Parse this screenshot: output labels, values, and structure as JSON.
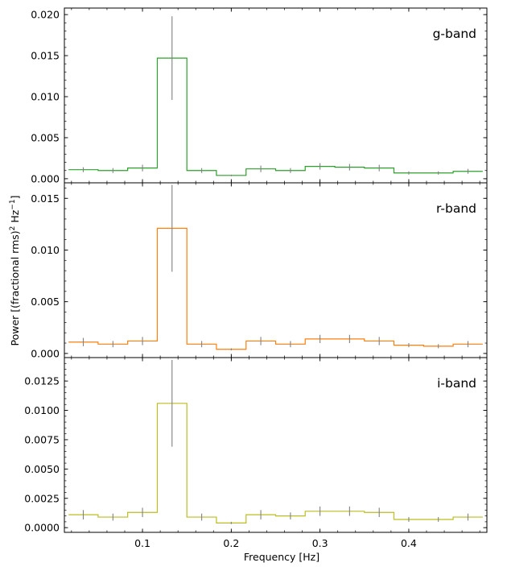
{
  "chart_data": {
    "type": "line",
    "xlabel": "Frequency [Hz]",
    "ylabel": "Power [(fractional rms)² Hz⁻¹]",
    "ylabel_main": "Power [(fractional rms)",
    "ylabel_sup1": "2",
    "ylabel_mid": " Hz",
    "ylabel_sup2": "−1",
    "ylabel_end": "]",
    "xlim": [
      0.012,
      0.488
    ],
    "xticks": [
      0.1,
      0.2,
      0.3,
      0.4
    ],
    "xtick_labels": [
      "0.1",
      "0.2",
      "0.3",
      "0.4"
    ],
    "bin_edges": [
      0.0167,
      0.05,
      0.0833,
      0.1167,
      0.15,
      0.1833,
      0.2167,
      0.25,
      0.2833,
      0.3167,
      0.35,
      0.3833,
      0.4167,
      0.45,
      0.4833
    ],
    "bin_centers": [
      0.0333,
      0.0667,
      0.1,
      0.1333,
      0.1667,
      0.2,
      0.2333,
      0.2667,
      0.3,
      0.3333,
      0.3667,
      0.4,
      0.4333,
      0.4667
    ],
    "panels": [
      {
        "name": "g-band",
        "color": "#2ca02c",
        "ylim": [
          -0.0005,
          0.0208
        ],
        "yticks": [
          0,
          0.005,
          0.01,
          0.015,
          0.02
        ],
        "ytick_labels": [
          "0.000",
          "0.005",
          "0.010",
          "0.015",
          "0.020"
        ],
        "values": [
          0.0011,
          0.001,
          0.0013,
          0.0147,
          0.001,
          0.0004,
          0.0012,
          0.001,
          0.0015,
          0.0014,
          0.0013,
          0.0007,
          0.0007,
          0.0009
        ],
        "errors": [
          0.0003,
          0.0003,
          0.0004,
          0.0051,
          0.0003,
          0.0001,
          0.0004,
          0.0003,
          0.0004,
          0.0004,
          0.0004,
          0.0002,
          0.0002,
          0.0003
        ]
      },
      {
        "name": "r-band",
        "color": "#ff7f0e",
        "ylim": [
          -0.0004,
          0.0165
        ],
        "yticks": [
          0,
          0.005,
          0.01,
          0.015
        ],
        "ytick_labels": [
          "0.000",
          "0.005",
          "0.010",
          "0.015"
        ],
        "values": [
          0.0011,
          0.0009,
          0.0012,
          0.0121,
          0.0009,
          0.0004,
          0.0012,
          0.0009,
          0.0014,
          0.0014,
          0.0012,
          0.0008,
          0.0007,
          0.0009
        ],
        "errors": [
          0.0004,
          0.0003,
          0.0004,
          0.0042,
          0.0003,
          0.0001,
          0.0004,
          0.0003,
          0.0004,
          0.0004,
          0.0004,
          0.0002,
          0.0002,
          0.0003
        ]
      },
      {
        "name": "i-band",
        "color": "#bcbd22",
        "ylim": [
          -0.0004,
          0.0145
        ],
        "yticks": [
          0,
          0.0025,
          0.005,
          0.0075,
          0.01,
          0.0125
        ],
        "ytick_labels": [
          "0.0000",
          "0.0025",
          "0.0050",
          "0.0075",
          "0.0100",
          "0.0125"
        ],
        "values": [
          0.0011,
          0.0009,
          0.0013,
          0.0106,
          0.0009,
          0.0004,
          0.0011,
          0.001,
          0.0014,
          0.0014,
          0.0013,
          0.0007,
          0.0007,
          0.0009
        ],
        "errors": [
          0.0004,
          0.0003,
          0.0004,
          0.0037,
          0.0003,
          0.0001,
          0.0004,
          0.0003,
          0.0004,
          0.0004,
          0.0004,
          0.0002,
          0.0002,
          0.0003
        ]
      }
    ],
    "errorbar_color": "#808080",
    "legend_position": "top-right"
  }
}
